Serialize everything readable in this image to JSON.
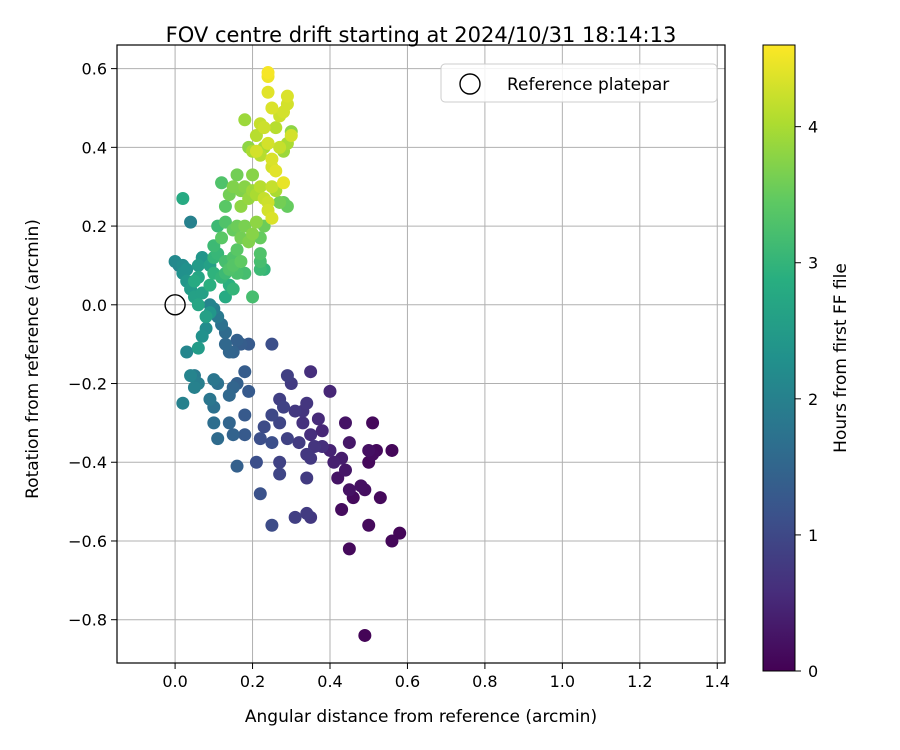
{
  "chart_data": {
    "type": "scatter",
    "title": "FOV centre drift starting at 2024/10/31 18:14:13",
    "xlabel": "Angular distance from reference (arcmin)",
    "ylabel": "Rotation from reference (arcmin)",
    "xlim": [
      -0.15,
      1.42
    ],
    "ylim": [
      -0.91,
      0.66
    ],
    "xticks": [
      0.0,
      0.2,
      0.4,
      0.6,
      0.8,
      1.0,
      1.2,
      1.4
    ],
    "xtick_labels": [
      "0.0",
      "0.2",
      "0.4",
      "0.6",
      "0.8",
      "1.0",
      "1.2",
      "1.4"
    ],
    "yticks": [
      0.6,
      0.4,
      0.2,
      0.0,
      -0.2,
      -0.4,
      -0.6,
      -0.8
    ],
    "ytick_labels": [
      "0.6",
      "0.4",
      "0.2",
      "0.0",
      "−0.2",
      "−0.4",
      "−0.6",
      "−0.8"
    ],
    "grid": true,
    "legend": {
      "position": "upper right",
      "entries": [
        "Reference platepar"
      ]
    },
    "reference_point": {
      "x": 0.0,
      "y": 0.0,
      "label": "Reference platepar"
    },
    "colorbar": {
      "label": "Hours from first FF file",
      "range": [
        0,
        4.6
      ],
      "ticks": [
        0,
        1,
        2,
        3,
        4
      ],
      "tick_labels": [
        "0",
        "1",
        "2",
        "3",
        "4"
      ],
      "colormap": "viridis"
    },
    "series": [
      {
        "color_by": "hours",
        "points": [
          {
            "x": 0.49,
            "y": -0.84,
            "c": 0.05
          },
          {
            "x": 0.45,
            "y": -0.62,
            "c": 0.1
          },
          {
            "x": 0.56,
            "y": -0.6,
            "c": 0.08
          },
          {
            "x": 0.58,
            "y": -0.58,
            "c": 0.06
          },
          {
            "x": 0.5,
            "y": -0.56,
            "c": 0.12
          },
          {
            "x": 0.43,
            "y": -0.52,
            "c": 0.15
          },
          {
            "x": 0.53,
            "y": -0.49,
            "c": 0.1
          },
          {
            "x": 0.46,
            "y": -0.49,
            "c": 0.12
          },
          {
            "x": 0.48,
            "y": -0.46,
            "c": 0.2
          },
          {
            "x": 0.45,
            "y": -0.47,
            "c": 0.22
          },
          {
            "x": 0.49,
            "y": -0.47,
            "c": 0.18
          },
          {
            "x": 0.42,
            "y": -0.44,
            "c": 0.25
          },
          {
            "x": 0.44,
            "y": -0.42,
            "c": 0.28
          },
          {
            "x": 0.5,
            "y": -0.4,
            "c": 0.1
          },
          {
            "x": 0.51,
            "y": -0.38,
            "c": 0.15
          },
          {
            "x": 0.52,
            "y": -0.37,
            "c": 0.12
          },
          {
            "x": 0.56,
            "y": -0.37,
            "c": 0.08
          },
          {
            "x": 0.5,
            "y": -0.37,
            "c": 0.2
          },
          {
            "x": 0.51,
            "y": -0.3,
            "c": 0.1
          },
          {
            "x": 0.45,
            "y": -0.35,
            "c": 0.3
          },
          {
            "x": 0.44,
            "y": -0.3,
            "c": 0.25
          },
          {
            "x": 0.43,
            "y": -0.39,
            "c": 0.35
          },
          {
            "x": 0.41,
            "y": -0.4,
            "c": 0.4
          },
          {
            "x": 0.4,
            "y": -0.37,
            "c": 0.45
          },
          {
            "x": 0.38,
            "y": -0.32,
            "c": 0.5
          },
          {
            "x": 0.37,
            "y": -0.29,
            "c": 0.55
          },
          {
            "x": 0.4,
            "y": -0.22,
            "c": 0.5
          },
          {
            "x": 0.35,
            "y": -0.17,
            "c": 0.6
          },
          {
            "x": 0.35,
            "y": -0.33,
            "c": 0.6
          },
          {
            "x": 0.33,
            "y": -0.3,
            "c": 0.65
          },
          {
            "x": 0.33,
            "y": -0.27,
            "c": 0.7
          },
          {
            "x": 0.34,
            "y": -0.25,
            "c": 0.72
          },
          {
            "x": 0.31,
            "y": -0.27,
            "c": 0.75
          },
          {
            "x": 0.3,
            "y": -0.2,
            "c": 0.8
          },
          {
            "x": 0.29,
            "y": -0.18,
            "c": 0.85
          },
          {
            "x": 0.27,
            "y": -0.24,
            "c": 0.85
          },
          {
            "x": 0.28,
            "y": -0.26,
            "c": 0.9
          },
          {
            "x": 0.27,
            "y": -0.3,
            "c": 0.95
          },
          {
            "x": 0.25,
            "y": -0.28,
            "c": 1.0
          },
          {
            "x": 0.23,
            "y": -0.31,
            "c": 1.05
          },
          {
            "x": 0.22,
            "y": -0.34,
            "c": 1.1
          },
          {
            "x": 0.25,
            "y": -0.35,
            "c": 1.1
          },
          {
            "x": 0.29,
            "y": -0.34,
            "c": 0.9
          },
          {
            "x": 0.32,
            "y": -0.35,
            "c": 0.8
          },
          {
            "x": 0.34,
            "y": -0.38,
            "c": 0.75
          },
          {
            "x": 0.36,
            "y": -0.36,
            "c": 0.7
          },
          {
            "x": 0.38,
            "y": -0.36,
            "c": 0.6
          },
          {
            "x": 0.35,
            "y": -0.39,
            "c": 0.75
          },
          {
            "x": 0.34,
            "y": -0.44,
            "c": 0.8
          },
          {
            "x": 0.27,
            "y": -0.4,
            "c": 0.9
          },
          {
            "x": 0.27,
            "y": -0.43,
            "c": 0.95
          },
          {
            "x": 0.21,
            "y": -0.4,
            "c": 1.1
          },
          {
            "x": 0.22,
            "y": -0.48,
            "c": 1.15
          },
          {
            "x": 0.31,
            "y": -0.54,
            "c": 0.85
          },
          {
            "x": 0.34,
            "y": -0.53,
            "c": 0.8
          },
          {
            "x": 0.35,
            "y": -0.54,
            "c": 0.75
          },
          {
            "x": 0.25,
            "y": -0.56,
            "c": 1.05
          },
          {
            "x": 0.18,
            "y": -0.28,
            "c": 1.3
          },
          {
            "x": 0.18,
            "y": -0.33,
            "c": 1.3
          },
          {
            "x": 0.16,
            "y": -0.41,
            "c": 1.4
          },
          {
            "x": 0.14,
            "y": -0.3,
            "c": 1.5
          },
          {
            "x": 0.11,
            "y": -0.34,
            "c": 1.6
          },
          {
            "x": 0.1,
            "y": -0.3,
            "c": 1.65
          },
          {
            "x": 0.1,
            "y": -0.26,
            "c": 1.7
          },
          {
            "x": 0.09,
            "y": -0.24,
            "c": 1.8
          },
          {
            "x": 0.11,
            "y": -0.2,
            "c": 1.7
          },
          {
            "x": 0.14,
            "y": -0.23,
            "c": 1.55
          },
          {
            "x": 0.15,
            "y": -0.21,
            "c": 1.5
          },
          {
            "x": 0.16,
            "y": -0.2,
            "c": 1.4
          },
          {
            "x": 0.18,
            "y": -0.17,
            "c": 1.35
          },
          {
            "x": 0.19,
            "y": -0.22,
            "c": 1.3
          },
          {
            "x": 0.15,
            "y": -0.33,
            "c": 1.45
          },
          {
            "x": 0.05,
            "y": -0.18,
            "c": 1.9
          },
          {
            "x": 0.06,
            "y": -0.2,
            "c": 1.95
          },
          {
            "x": 0.05,
            "y": -0.21,
            "c": 2.0
          },
          {
            "x": 0.04,
            "y": -0.18,
            "c": 2.05
          },
          {
            "x": 0.02,
            "y": -0.25,
            "c": 2.0
          },
          {
            "x": 0.1,
            "y": -0.19,
            "c": 1.8
          },
          {
            "x": 0.25,
            "y": -0.1,
            "c": 1.1
          },
          {
            "x": 0.19,
            "y": -0.1,
            "c": 1.3
          },
          {
            "x": 0.17,
            "y": -0.1,
            "c": 1.35
          },
          {
            "x": 0.16,
            "y": -0.09,
            "c": 1.4
          },
          {
            "x": 0.15,
            "y": -0.12,
            "c": 1.45
          },
          {
            "x": 0.14,
            "y": -0.12,
            "c": 1.5
          },
          {
            "x": 0.13,
            "y": -0.1,
            "c": 1.55
          },
          {
            "x": 0.13,
            "y": -0.07,
            "c": 1.6
          },
          {
            "x": 0.12,
            "y": -0.05,
            "c": 1.7
          },
          {
            "x": 0.11,
            "y": -0.03,
            "c": 1.85
          },
          {
            "x": 0.1,
            "y": -0.01,
            "c": 1.95
          },
          {
            "x": 0.09,
            "y": 0.0,
            "c": 2.05
          },
          {
            "x": 0.03,
            "y": -0.12,
            "c": 2.1
          },
          {
            "x": 0.06,
            "y": -0.11,
            "c": 2.5
          },
          {
            "x": 0.07,
            "y": -0.08,
            "c": 2.3
          },
          {
            "x": 0.08,
            "y": -0.06,
            "c": 2.2
          },
          {
            "x": 0.08,
            "y": -0.03,
            "c": 2.6
          },
          {
            "x": 0.09,
            "y": -0.02,
            "c": 2.4
          },
          {
            "x": 0.06,
            "y": 0.0,
            "c": 2.7
          },
          {
            "x": 0.05,
            "y": 0.02,
            "c": 2.6
          },
          {
            "x": 0.04,
            "y": 0.04,
            "c": 2.5
          },
          {
            "x": 0.03,
            "y": 0.06,
            "c": 2.4
          },
          {
            "x": 0.02,
            "y": 0.08,
            "c": 2.3
          },
          {
            "x": 0.02,
            "y": 0.1,
            "c": 2.2
          },
          {
            "x": 0.0,
            "y": 0.11,
            "c": 2.15
          },
          {
            "x": 0.01,
            "y": 0.1,
            "c": 2.1
          },
          {
            "x": 0.04,
            "y": 0.21,
            "c": 2.0
          },
          {
            "x": 0.03,
            "y": 0.09,
            "c": 2.3
          },
          {
            "x": 0.07,
            "y": 0.12,
            "c": 2.4
          },
          {
            "x": 0.06,
            "y": 0.1,
            "c": 2.5
          },
          {
            "x": 0.09,
            "y": 0.1,
            "c": 2.6
          },
          {
            "x": 0.06,
            "y": 0.07,
            "c": 2.7
          },
          {
            "x": 0.05,
            "y": 0.06,
            "c": 2.8
          },
          {
            "x": 0.02,
            "y": 0.27,
            "c": 2.8
          },
          {
            "x": 0.07,
            "y": 0.03,
            "c": 2.6
          },
          {
            "x": 0.09,
            "y": 0.05,
            "c": 2.9
          },
          {
            "x": 0.1,
            "y": 0.08,
            "c": 2.95
          },
          {
            "x": 0.1,
            "y": 0.12,
            "c": 3.0
          },
          {
            "x": 0.11,
            "y": 0.13,
            "c": 3.05
          },
          {
            "x": 0.1,
            "y": 0.15,
            "c": 3.1
          },
          {
            "x": 0.12,
            "y": 0.07,
            "c": 3.0
          },
          {
            "x": 0.13,
            "y": 0.08,
            "c": 3.1
          },
          {
            "x": 0.13,
            "y": 0.11,
            "c": 3.2
          },
          {
            "x": 0.14,
            "y": 0.09,
            "c": 3.3
          },
          {
            "x": 0.15,
            "y": 0.1,
            "c": 3.35
          },
          {
            "x": 0.15,
            "y": 0.12,
            "c": 3.3
          },
          {
            "x": 0.16,
            "y": 0.08,
            "c": 3.25
          },
          {
            "x": 0.16,
            "y": 0.14,
            "c": 3.4
          },
          {
            "x": 0.17,
            "y": 0.11,
            "c": 3.45
          },
          {
            "x": 0.18,
            "y": 0.08,
            "c": 3.2
          },
          {
            "x": 0.15,
            "y": 0.04,
            "c": 3.0
          },
          {
            "x": 0.14,
            "y": 0.05,
            "c": 2.9
          },
          {
            "x": 0.13,
            "y": 0.02,
            "c": 2.8
          },
          {
            "x": 0.12,
            "y": 0.17,
            "c": 3.4
          },
          {
            "x": 0.11,
            "y": 0.2,
            "c": 3.1
          },
          {
            "x": 0.13,
            "y": 0.21,
            "c": 3.3
          },
          {
            "x": 0.15,
            "y": 0.19,
            "c": 3.5
          },
          {
            "x": 0.16,
            "y": 0.2,
            "c": 3.55
          },
          {
            "x": 0.17,
            "y": 0.17,
            "c": 3.6
          },
          {
            "x": 0.18,
            "y": 0.2,
            "c": 3.65
          },
          {
            "x": 0.19,
            "y": 0.16,
            "c": 3.7
          },
          {
            "x": 0.2,
            "y": 0.18,
            "c": 3.75
          },
          {
            "x": 0.21,
            "y": 0.21,
            "c": 3.8
          },
          {
            "x": 0.22,
            "y": 0.17,
            "c": 3.5
          },
          {
            "x": 0.23,
            "y": 0.2,
            "c": 3.55
          },
          {
            "x": 0.22,
            "y": 0.13,
            "c": 3.3
          },
          {
            "x": 0.22,
            "y": 0.11,
            "c": 3.2
          },
          {
            "x": 0.22,
            "y": 0.09,
            "c": 3.1
          },
          {
            "x": 0.23,
            "y": 0.09,
            "c": 3.0
          },
          {
            "x": 0.2,
            "y": 0.02,
            "c": 3.2
          },
          {
            "x": 0.12,
            "y": 0.31,
            "c": 3.3
          },
          {
            "x": 0.13,
            "y": 0.25,
            "c": 3.4
          },
          {
            "x": 0.14,
            "y": 0.28,
            "c": 3.6
          },
          {
            "x": 0.15,
            "y": 0.3,
            "c": 3.7
          },
          {
            "x": 0.16,
            "y": 0.33,
            "c": 3.6
          },
          {
            "x": 0.17,
            "y": 0.29,
            "c": 3.7
          },
          {
            "x": 0.18,
            "y": 0.3,
            "c": 3.75
          },
          {
            "x": 0.17,
            "y": 0.25,
            "c": 3.8
          },
          {
            "x": 0.19,
            "y": 0.27,
            "c": 3.85
          },
          {
            "x": 0.2,
            "y": 0.29,
            "c": 3.9
          },
          {
            "x": 0.2,
            "y": 0.33,
            "c": 3.75
          },
          {
            "x": 0.21,
            "y": 0.28,
            "c": 4.0
          },
          {
            "x": 0.22,
            "y": 0.3,
            "c": 4.1
          },
          {
            "x": 0.23,
            "y": 0.27,
            "c": 4.2
          },
          {
            "x": 0.24,
            "y": 0.26,
            "c": 4.25
          },
          {
            "x": 0.24,
            "y": 0.24,
            "c": 4.3
          },
          {
            "x": 0.25,
            "y": 0.22,
            "c": 4.35
          },
          {
            "x": 0.25,
            "y": 0.3,
            "c": 4.2
          },
          {
            "x": 0.26,
            "y": 0.29,
            "c": 4.0
          },
          {
            "x": 0.27,
            "y": 0.26,
            "c": 3.6
          },
          {
            "x": 0.28,
            "y": 0.26,
            "c": 3.5
          },
          {
            "x": 0.29,
            "y": 0.25,
            "c": 3.5
          },
          {
            "x": 0.19,
            "y": 0.4,
            "c": 3.8
          },
          {
            "x": 0.2,
            "y": 0.39,
            "c": 4.0
          },
          {
            "x": 0.21,
            "y": 0.39,
            "c": 4.3
          },
          {
            "x": 0.21,
            "y": 0.43,
            "c": 4.1
          },
          {
            "x": 0.22,
            "y": 0.46,
            "c": 4.2
          },
          {
            "x": 0.23,
            "y": 0.45,
            "c": 4.25
          },
          {
            "x": 0.24,
            "y": 0.41,
            "c": 4.3
          },
          {
            "x": 0.25,
            "y": 0.37,
            "c": 4.35
          },
          {
            "x": 0.26,
            "y": 0.34,
            "c": 4.4
          },
          {
            "x": 0.25,
            "y": 0.35,
            "c": 4.3
          },
          {
            "x": 0.28,
            "y": 0.31,
            "c": 4.45
          },
          {
            "x": 0.27,
            "y": 0.4,
            "c": 4.2
          },
          {
            "x": 0.28,
            "y": 0.39,
            "c": 3.9
          },
          {
            "x": 0.29,
            "y": 0.41,
            "c": 4.0
          },
          {
            "x": 0.3,
            "y": 0.43,
            "c": 4.3
          },
          {
            "x": 0.3,
            "y": 0.44,
            "c": 3.8
          },
          {
            "x": 0.26,
            "y": 0.45,
            "c": 4.1
          },
          {
            "x": 0.27,
            "y": 0.48,
            "c": 4.25
          },
          {
            "x": 0.28,
            "y": 0.49,
            "c": 4.3
          },
          {
            "x": 0.25,
            "y": 0.5,
            "c": 4.35
          },
          {
            "x": 0.24,
            "y": 0.54,
            "c": 4.4
          },
          {
            "x": 0.29,
            "y": 0.51,
            "c": 4.3
          },
          {
            "x": 0.29,
            "y": 0.53,
            "c": 4.35
          },
          {
            "x": 0.24,
            "y": 0.58,
            "c": 4.5
          },
          {
            "x": 0.24,
            "y": 0.59,
            "c": 4.55
          },
          {
            "x": 0.18,
            "y": 0.47,
            "c": 3.9
          },
          {
            "x": 0.22,
            "y": 0.38,
            "c": 4.1
          },
          {
            "x": 0.23,
            "y": 0.4,
            "c": 4.0
          }
        ]
      }
    ]
  }
}
